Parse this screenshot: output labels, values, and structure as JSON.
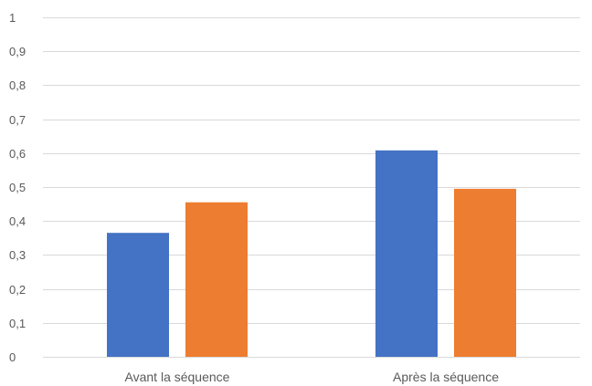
{
  "chart_data": {
    "type": "bar",
    "categories": [
      "Avant la séquence",
      "Après la séquence"
    ],
    "series": [
      {
        "values": [
          0.365,
          0.608
        ],
        "color": "#4472C4"
      },
      {
        "values": [
          0.455,
          0.495
        ],
        "color": "#ED7D31"
      }
    ],
    "ylim": [
      0,
      1
    ],
    "yticks": [
      0,
      0.1,
      0.2,
      0.3,
      0.4,
      0.5,
      0.6,
      0.7,
      0.8,
      0.9,
      1
    ],
    "ytick_labels": [
      "0",
      "0,1",
      "0,2",
      "0,3",
      "0,4",
      "0,5",
      "0,6",
      "0,7",
      "0,8",
      "0,9",
      "1"
    ],
    "grid": true,
    "legend": "none"
  }
}
